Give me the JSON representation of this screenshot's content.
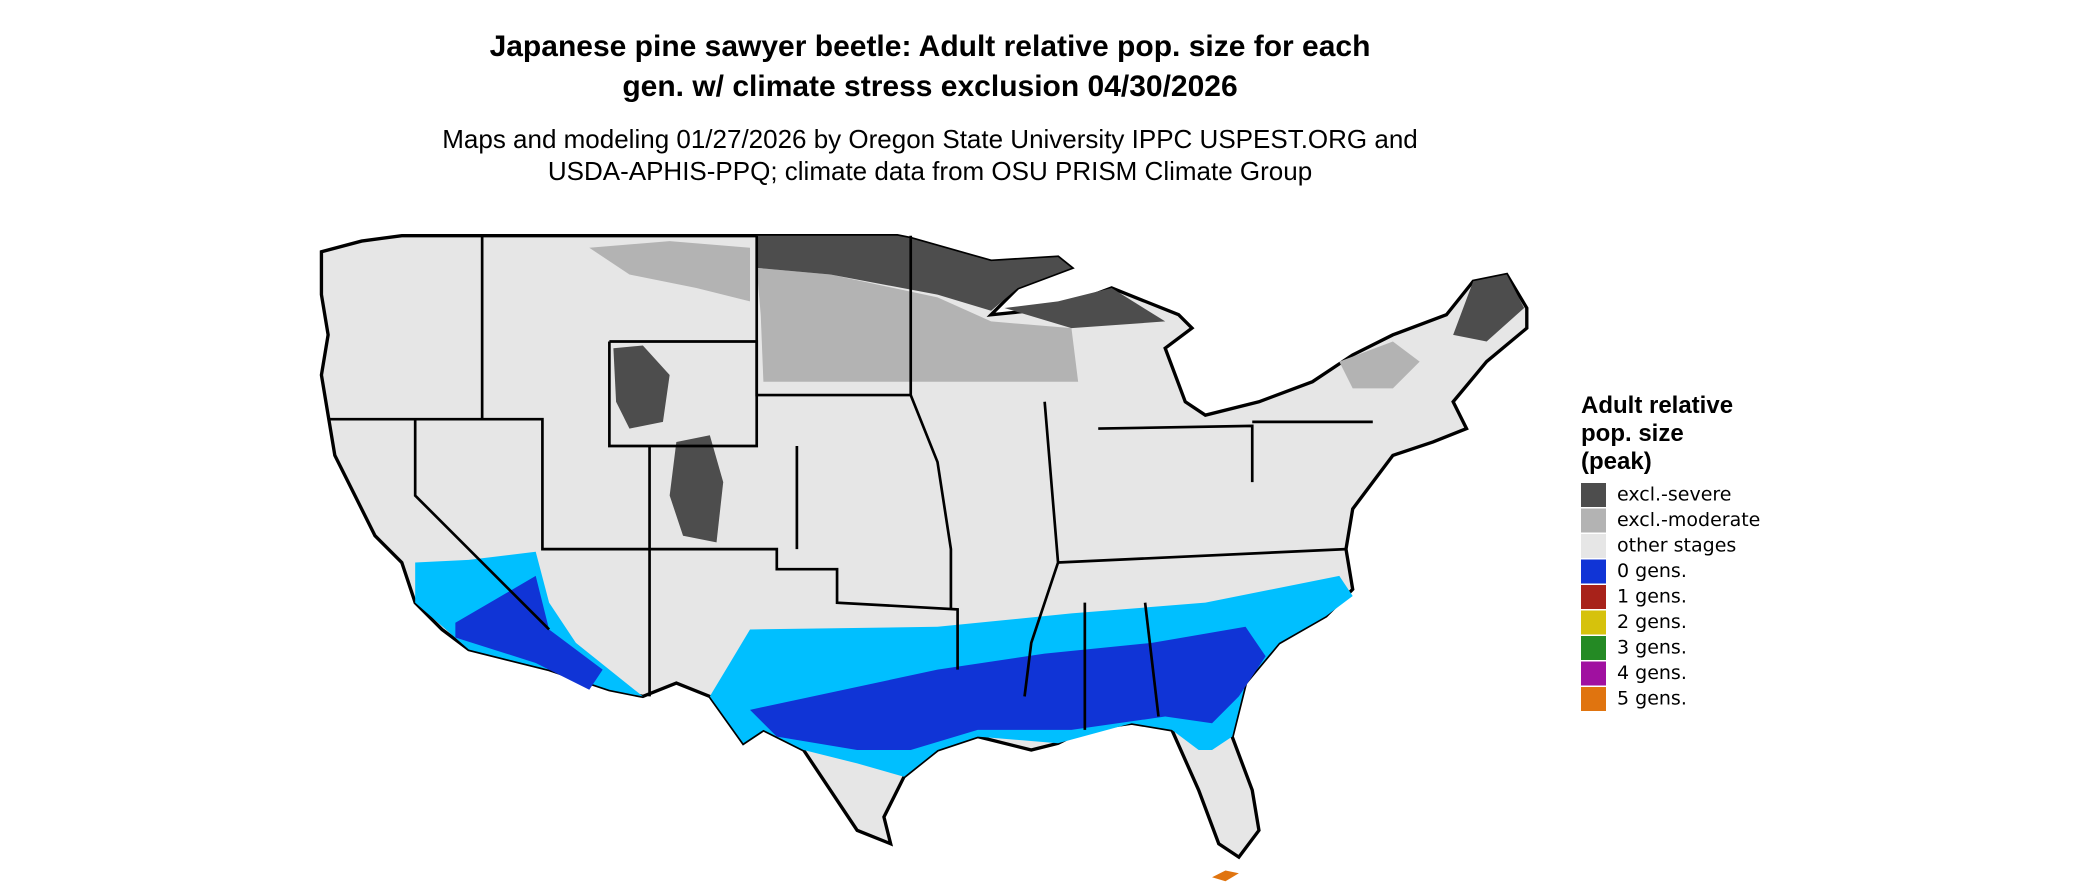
{
  "title": {
    "lines": [
      "Japanese pine sawyer beetle: Adult relative pop. size for each",
      "gen. w/ climate stress exclusion 04/30/2026"
    ]
  },
  "subtitle": {
    "lines": [
      "Maps and modeling 01/27/2026 by Oregon State University IPPC USPEST.ORG and",
      "USDA-APHIS-PPQ; climate data from OSU PRISM Climate Group"
    ]
  },
  "legend": {
    "title_lines": [
      "Adult relative",
      "pop. size",
      "(peak)"
    ],
    "items": [
      {
        "label": "excl.-severe",
        "color": "#4d4d4d"
      },
      {
        "label": "excl.-moderate",
        "color": "#b3b3b3"
      },
      {
        "label": "other stages",
        "color": "#e6e6e6"
      },
      {
        "label": "0 gens.",
        "color": "#1034d6"
      },
      {
        "label": "1 gens.",
        "color": "#a8221a"
      },
      {
        "label": "2 gens.",
        "color": "#d6c20c"
      },
      {
        "label": "3 gens.",
        "color": "#248a24"
      },
      {
        "label": "4 gens.",
        "color": "#a010a0"
      },
      {
        "label": "5 gens.",
        "color": "#e0740f"
      }
    ]
  }
}
